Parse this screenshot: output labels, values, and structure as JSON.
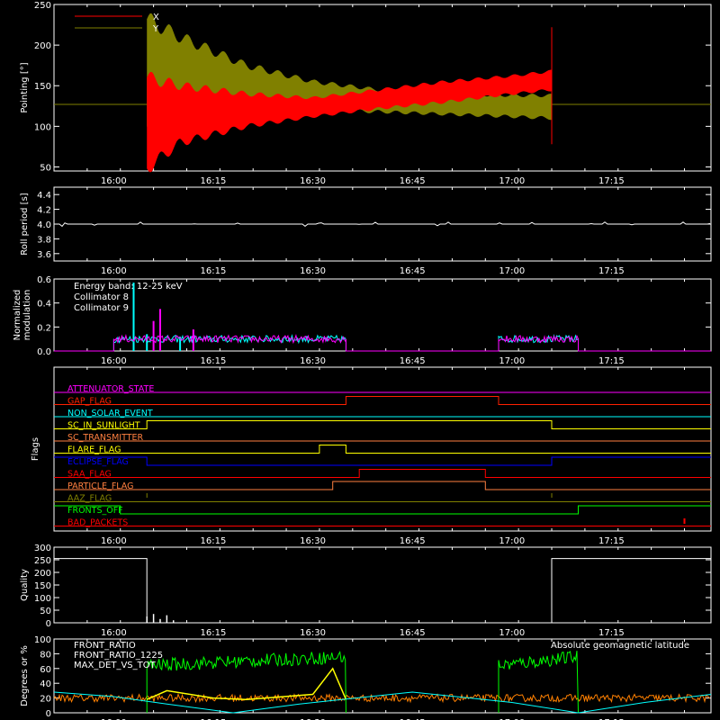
{
  "chart_data": [
    {
      "type": "line",
      "ylabel": "Pointing [°]",
      "xlim": [
        "15:51",
        "17:30"
      ],
      "ylim": [
        45,
        250
      ],
      "yticks": [
        50,
        100,
        150,
        200,
        250
      ],
      "xticks": [
        "16:00",
        "16:15",
        "16:30",
        "16:45",
        "17:00",
        "17:15"
      ],
      "legend": "top-left",
      "series": [
        {
          "name": "X",
          "color": "#ff0000",
          "x": [
            "15:51",
            "16:05",
            "16:10",
            "16:20",
            "16:30",
            "16:40",
            "16:50",
            "17:00",
            "17:06"
          ],
          "y_low": [
            127,
            48,
            80,
            100,
            112,
            122,
            130,
            140,
            145
          ],
          "y_high": [
            127,
            160,
            150,
            140,
            135,
            145,
            155,
            162,
            168
          ]
        },
        {
          "name": "Y",
          "color": "#808000",
          "x": [
            "15:51",
            "16:05",
            "16:10",
            "16:20",
            "16:30",
            "16:40",
            "16:50",
            "17:00",
            "17:06",
            "17:30"
          ],
          "y_low": [
            127,
            100,
            115,
            118,
            120,
            118,
            115,
            112,
            110,
            127
          ],
          "y_high": [
            127,
            232,
            210,
            175,
            155,
            145,
            140,
            138,
            138,
            127
          ]
        }
      ]
    },
    {
      "type": "line",
      "ylabel": "Roll period [s]",
      "ylim": [
        3.5,
        4.5
      ],
      "yticks": [
        3.6,
        3.8,
        4.0,
        4.2,
        4.4
      ],
      "xticks": [
        "16:00",
        "16:15",
        "16:30",
        "16:45",
        "17:00",
        "17:15"
      ],
      "series": [
        {
          "color": "#ffffff",
          "x": [
            "15:51",
            "17:30"
          ],
          "y": [
            4.0,
            4.0
          ]
        }
      ]
    },
    {
      "type": "line",
      "ylabel": "Normalized modulation",
      "ylim": [
        0,
        0.6
      ],
      "yticks": [
        0.0,
        0.2,
        0.4,
        0.6
      ],
      "xticks": [
        "16:00",
        "16:15",
        "16:30",
        "16:45",
        "17:00",
        "17:15"
      ],
      "annotation": "Energy band: 12-25 keV",
      "series": [
        {
          "name": "Collimator 8",
          "color": "#00ffff",
          "intervals": [
            [
              "16:00",
              "16:35"
            ],
            [
              "16:58",
              "17:10"
            ]
          ],
          "baseline": 0.1,
          "spikes": [
            [
              "16:03",
              0.57
            ],
            [
              "16:05",
              0.14
            ],
            [
              "16:10",
              0.12
            ]
          ]
        },
        {
          "name": "Collimator 9",
          "color": "#ff00ff",
          "intervals": [
            [
              "16:00",
              "16:35"
            ],
            [
              "16:58",
              "17:10"
            ]
          ],
          "baseline": 0.1,
          "spikes": [
            [
              "16:07",
              0.35
            ],
            [
              "16:06",
              0.25
            ],
            [
              "16:12",
              0.18
            ]
          ]
        }
      ]
    },
    {
      "type": "line",
      "ylabel": "Flags",
      "xticks": [
        "16:00",
        "16:15",
        "16:30",
        "16:45",
        "17:00",
        "17:15"
      ],
      "series": [
        {
          "name": "ATTENUATOR_STATE",
          "color": "#ff00ff",
          "x": [
            "15:51",
            "17:30"
          ],
          "y": [
            0,
            0
          ]
        },
        {
          "name": "GAP_FLAG",
          "color": "#ff2000",
          "x": [
            "15:51",
            "16:35",
            "16:35",
            "16:58",
            "16:58",
            "17:30"
          ],
          "y": [
            0,
            0,
            1,
            1,
            0,
            0
          ]
        },
        {
          "name": "NON_SOLAR_EVENT",
          "color": "#00ffff",
          "x": [
            "15:51",
            "17:30"
          ],
          "y": [
            0,
            0
          ]
        },
        {
          "name": "SC_IN_SUNLIGHT",
          "color": "#ffff00",
          "x": [
            "15:51",
            "16:05",
            "16:05",
            "17:06",
            "17:06",
            "17:30"
          ],
          "y": [
            0,
            0,
            1,
            1,
            0,
            0
          ]
        },
        {
          "name": "SC_TRANSMITTER",
          "color": "#ff8040",
          "x": [
            "15:51",
            "17:30"
          ],
          "y": [
            0,
            0
          ]
        },
        {
          "name": "FLARE_FLAG",
          "color": "#ffff00",
          "x": [
            "15:51",
            "16:31",
            "16:31",
            "16:35",
            "16:35",
            "17:30"
          ],
          "y": [
            0,
            0,
            1,
            1,
            0,
            0
          ]
        },
        {
          "name": "ECLIPSE_FLAG",
          "color": "#0000ff",
          "x": [
            "15:51",
            "16:05",
            "16:05",
            "17:06",
            "17:06",
            "17:30"
          ],
          "y": [
            1,
            1,
            0,
            0,
            1,
            1
          ]
        },
        {
          "name": "SAA_FLAG",
          "color": "#ff0000",
          "x": [
            "15:51",
            "16:37",
            "16:37",
            "16:56",
            "16:56",
            "17:30"
          ],
          "y": [
            0,
            0,
            1,
            1,
            0,
            0
          ]
        },
        {
          "name": "PARTICLE_FLAG",
          "color": "#ff8040",
          "x": [
            "15:51",
            "16:33",
            "16:33",
            "16:56",
            "16:56",
            "17:30"
          ],
          "y": [
            0,
            0,
            1,
            1,
            0,
            0
          ]
        },
        {
          "name": "AAZ_FLAG",
          "color": "#808000",
          "x": [
            "15:51",
            "17:30"
          ],
          "y": [
            0,
            0
          ]
        },
        {
          "name": "FRONTS_OFF",
          "color": "#00ff00",
          "x": [
            "15:51",
            "16:01",
            "16:01",
            "17:10",
            "17:10",
            "17:30"
          ],
          "y": [
            1,
            1,
            0,
            0,
            1,
            1
          ]
        },
        {
          "name": "BAD_PACKETS",
          "color": "#ff0000",
          "x": [
            "15:51",
            "17:30"
          ],
          "y": [
            0,
            0
          ]
        }
      ]
    },
    {
      "type": "line",
      "ylabel": "Quality",
      "ylim": [
        0,
        300
      ],
      "yticks": [
        0,
        50,
        100,
        150,
        200,
        250,
        300
      ],
      "xticks": [
        "16:00",
        "16:15",
        "16:30",
        "16:45",
        "17:00",
        "17:15"
      ],
      "series": [
        {
          "color": "#ffffff",
          "x": [
            "15:51",
            "16:05",
            "16:05",
            "17:06",
            "17:06",
            "17:30"
          ],
          "y": [
            255,
            255,
            0,
            0,
            255,
            255
          ]
        }
      ]
    },
    {
      "type": "line",
      "ylabel": "Degrees or %",
      "ylim": [
        0,
        100
      ],
      "yticks": [
        0,
        20,
        40,
        60,
        80,
        100
      ],
      "xticks": [
        "16:00",
        "16:15",
        "16:30",
        "16:45",
        "17:00",
        "17:15"
      ],
      "series": [
        {
          "name": "FRONT_RATIO",
          "color": "#ffff00",
          "x": [
            "16:05",
            "16:08",
            "16:15",
            "16:20",
            "16:30",
            "16:33",
            "16:35"
          ],
          "y": [
            18,
            30,
            20,
            18,
            25,
            60,
            18
          ]
        },
        {
          "name": "FRONT_RATIO_1225",
          "color": "#00ff00",
          "intervals": [
            [
              "16:05",
              "16:35"
            ],
            [
              "16:58",
              "17:10"
            ]
          ],
          "y_range": [
            55,
            85
          ]
        },
        {
          "name": "MAX_DET_VS_TOT",
          "color": "#ff8000",
          "x": [
            "15:51",
            "17:30"
          ],
          "y": [
            20,
            20
          ]
        },
        {
          "name": "Absolute geomagnetic latitude",
          "color": "#00ffff",
          "x": [
            "15:51",
            "16:00",
            "16:08",
            "16:18",
            "16:28",
            "16:45",
            "17:00",
            "17:10",
            "17:20",
            "17:30"
          ],
          "y": [
            28,
            22,
            12,
            0,
            12,
            28,
            14,
            0,
            14,
            25
          ]
        }
      ]
    }
  ]
}
